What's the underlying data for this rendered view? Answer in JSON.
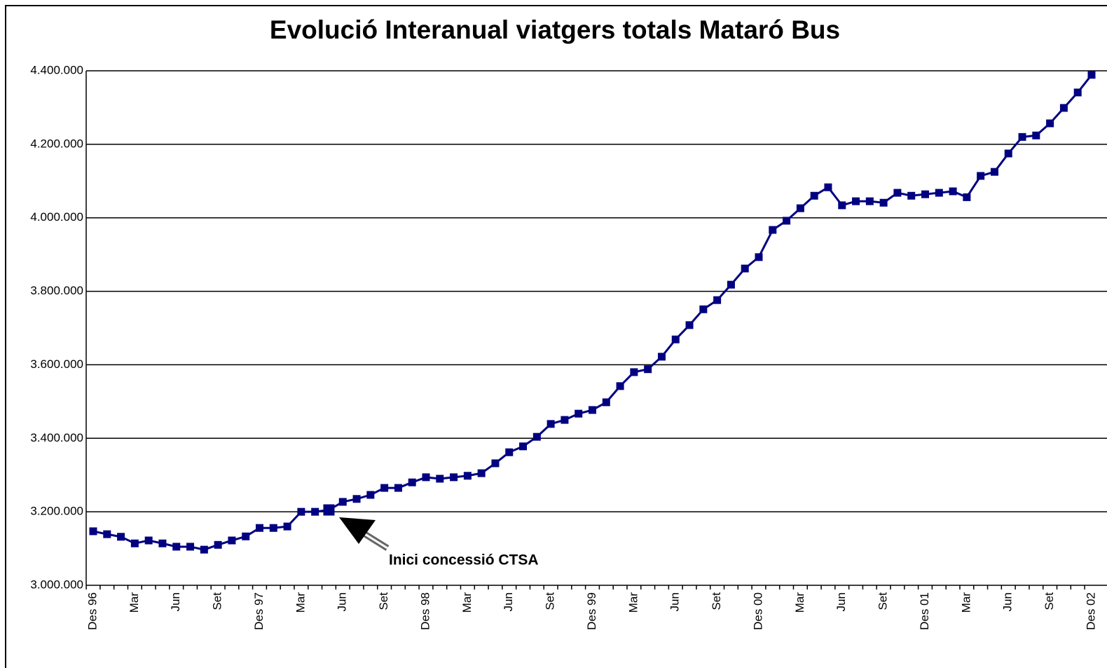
{
  "chart_data": {
    "type": "line",
    "title": "Evolució Interanual viatgers totals Mataró Bus",
    "annotation": "Inici concessió CTSA",
    "categories": [
      "Des 96",
      null,
      null,
      "Mar",
      null,
      null,
      "Jun",
      null,
      null,
      "Set",
      null,
      null,
      "Des 97",
      null,
      null,
      "Mar",
      null,
      null,
      "Jun",
      null,
      null,
      "Set",
      null,
      null,
      "Des  98",
      null,
      null,
      "Mar",
      null,
      null,
      "Jun",
      null,
      null,
      "Set",
      null,
      null,
      "Des 99",
      null,
      null,
      "Mar",
      null,
      null,
      "Jun",
      null,
      null,
      "Set",
      null,
      null,
      "Des 00",
      null,
      null,
      "Mar",
      null,
      null,
      "Jun",
      null,
      null,
      "Set",
      null,
      null,
      "Des 01",
      null,
      null,
      "Mar",
      null,
      null,
      "Jun",
      null,
      null,
      "Set",
      null,
      null,
      "Des 02"
    ],
    "values": [
      3147000,
      3139000,
      3132000,
      3114000,
      3122000,
      3114000,
      3105000,
      3105000,
      3097000,
      3110000,
      3122000,
      3133000,
      3156000,
      3156000,
      3160000,
      3200000,
      3200000,
      3205000,
      3227000,
      3235000,
      3246000,
      3265000,
      3265000,
      3280000,
      3294000,
      3290000,
      3294000,
      3298000,
      3305000,
      3332000,
      3362000,
      3378000,
      3404000,
      3439000,
      3450000,
      3467000,
      3477000,
      3498000,
      3542000,
      3580000,
      3588000,
      3622000,
      3669000,
      3708000,
      3751000,
      3776000,
      3818000,
      3862000,
      3893000,
      3967000,
      3992000,
      4026000,
      4060000,
      4083000,
      4034000,
      4045000,
      4045000,
      4041000,
      4068000,
      4060000,
      4064000,
      4068000,
      4072000,
      4056000,
      4114000,
      4125000,
      4175000,
      4220000,
      4224000,
      4257000,
      4299000,
      4341000,
      4389000
    ],
    "color": "#000080",
    "ylim": [
      3000000,
      4400000
    ],
    "yticks": [
      {
        "value": 3000000,
        "label": "3.000.000"
      },
      {
        "value": 3200000,
        "label": "3.200.000"
      },
      {
        "value": 3400000,
        "label": "3.400.000"
      },
      {
        "value": 3600000,
        "label": "3.600.000"
      },
      {
        "value": 3800000,
        "label": "3.800.000"
      },
      {
        "value": 4000000,
        "label": "4.000.000"
      },
      {
        "value": 4200000,
        "label": "4.200.000"
      },
      {
        "value": 4400000,
        "label": "4.400.000"
      }
    ],
    "grid": true
  }
}
